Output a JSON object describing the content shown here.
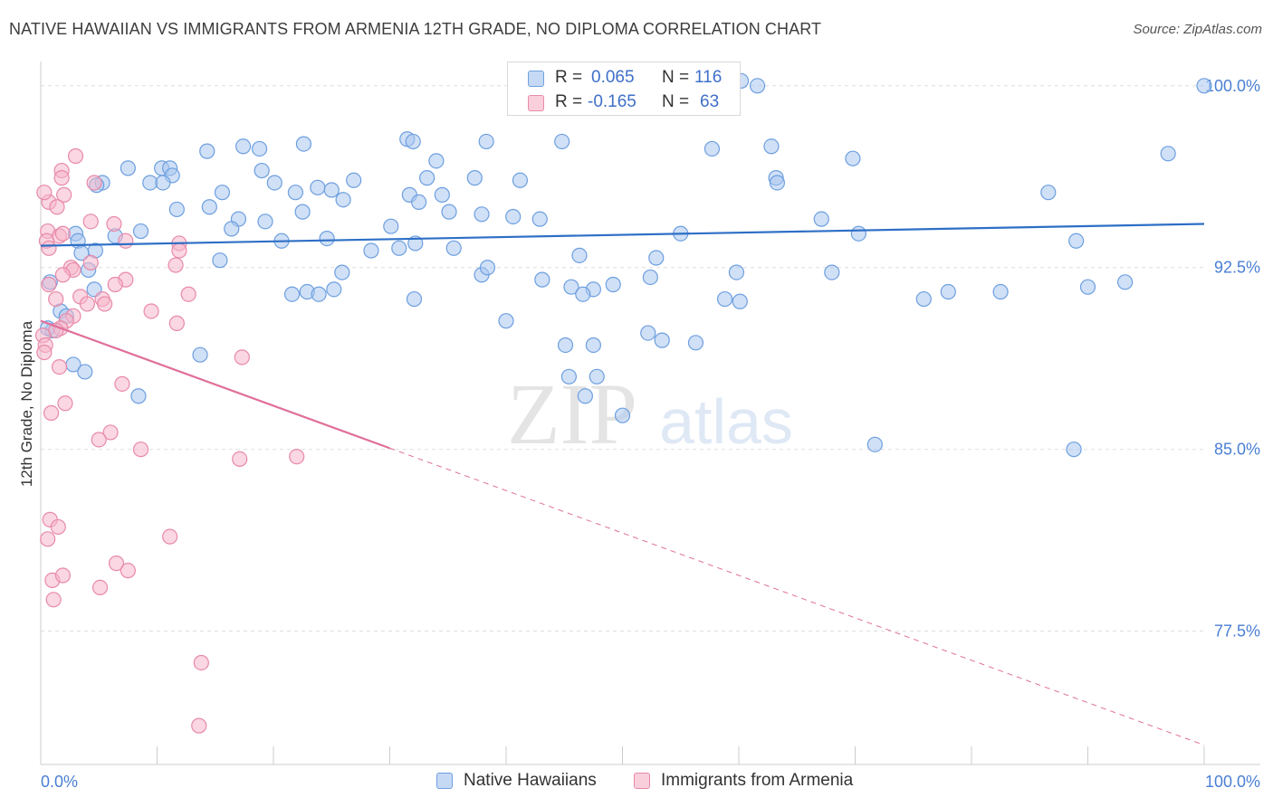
{
  "header": {
    "title": "NATIVE HAWAIIAN VS IMMIGRANTS FROM ARMENIA 12TH GRADE, NO DIPLOMA CORRELATION CHART",
    "source": "Source: ZipAtlas.com"
  },
  "watermark": {
    "zip": "ZIP",
    "atlas": "atlas"
  },
  "stats": {
    "r_label": "R =",
    "n_label": "N =",
    "rows": [
      {
        "r": "0.065",
        "n": "116"
      },
      {
        "r": "-0.165",
        "n": "63"
      }
    ]
  },
  "colors": {
    "blue_fill": "#a9c7ef",
    "blue_stroke": "#6d9fe0",
    "blue_line": "#2e6fc6",
    "pink_fill": "#f5b6ca",
    "pink_stroke": "#e889a9",
    "pink_line": "#e0709a",
    "tick_label": "#4a7fd4",
    "grid": "#dddddd"
  },
  "chart_data": {
    "type": "scatter",
    "title": "NATIVE HAWAIIAN VS IMMIGRANTS FROM ARMENIA 12TH GRADE, NO DIPLOMA CORRELATION CHART",
    "xlabel": "",
    "ylabel": "12th Grade, No Diploma",
    "xlim": [
      0,
      100
    ],
    "ylim": [
      72.0,
      101.0
    ],
    "x_tick_labels": [
      "0.0%",
      "100.0%"
    ],
    "y_ticks": [
      {
        "value": 100.0,
        "label": "100.0%"
      },
      {
        "value": 92.5,
        "label": "92.5%"
      },
      {
        "value": 85.0,
        "label": "85.0%"
      },
      {
        "value": 77.5,
        "label": "77.5%"
      }
    ],
    "grid": true,
    "legend_position": "bottom",
    "series": [
      {
        "name": "Native Hawaiians",
        "color": "#a9c7ef",
        "trend": {
          "x0": 0,
          "y0": 93.4,
          "x1": 100,
          "y1": 94.3,
          "dashed_from": null
        },
        "points": [
          [
            40.8,
            100.3
          ],
          [
            58.3,
            100.2
          ],
          [
            59.2,
            100.1
          ],
          [
            60.2,
            100.2
          ],
          [
            61.6,
            100.0
          ],
          [
            100.0,
            100.0
          ],
          [
            31.5,
            97.8
          ],
          [
            32.0,
            97.7
          ],
          [
            38.3,
            97.7
          ],
          [
            44.8,
            97.7
          ],
          [
            22.6,
            97.6
          ],
          [
            17.4,
            97.5
          ],
          [
            18.8,
            97.4
          ],
          [
            62.8,
            97.5
          ],
          [
            57.7,
            97.4
          ],
          [
            14.3,
            97.3
          ],
          [
            96.9,
            97.2
          ],
          [
            34.0,
            96.9
          ],
          [
            69.8,
            97.0
          ],
          [
            10.4,
            96.6
          ],
          [
            11.1,
            96.6
          ],
          [
            11.3,
            96.3
          ],
          [
            19.0,
            96.5
          ],
          [
            26.9,
            96.1
          ],
          [
            7.5,
            96.6
          ],
          [
            9.4,
            96.0
          ],
          [
            33.2,
            96.2
          ],
          [
            41.2,
            96.1
          ],
          [
            63.2,
            96.2
          ],
          [
            37.3,
            96.2
          ],
          [
            20.1,
            96.0
          ],
          [
            63.3,
            96.0
          ],
          [
            5.3,
            96.0
          ],
          [
            10.5,
            96.0
          ],
          [
            4.8,
            95.9
          ],
          [
            23.8,
            95.8
          ],
          [
            25.0,
            95.7
          ],
          [
            31.7,
            95.5
          ],
          [
            21.9,
            95.6
          ],
          [
            32.5,
            95.2
          ],
          [
            34.5,
            95.5
          ],
          [
            15.6,
            95.6
          ],
          [
            86.6,
            95.6
          ],
          [
            26.0,
            95.3
          ],
          [
            14.5,
            95.0
          ],
          [
            11.7,
            94.9
          ],
          [
            40.6,
            94.6
          ],
          [
            35.1,
            94.8
          ],
          [
            17.0,
            94.5
          ],
          [
            37.9,
            94.7
          ],
          [
            22.5,
            94.8
          ],
          [
            42.9,
            94.5
          ],
          [
            19.3,
            94.4
          ],
          [
            16.4,
            94.1
          ],
          [
            8.6,
            94.0
          ],
          [
            6.4,
            93.8
          ],
          [
            3.0,
            93.9
          ],
          [
            3.2,
            93.6
          ],
          [
            32.2,
            93.5
          ],
          [
            67.1,
            94.5
          ],
          [
            55.0,
            93.9
          ],
          [
            70.3,
            93.9
          ],
          [
            89.0,
            93.6
          ],
          [
            4.7,
            93.2
          ],
          [
            3.5,
            93.1
          ],
          [
            20.7,
            93.6
          ],
          [
            24.6,
            93.7
          ],
          [
            28.4,
            93.2
          ],
          [
            30.8,
            93.3
          ],
          [
            46.3,
            93.0
          ],
          [
            52.9,
            92.9
          ],
          [
            15.4,
            92.8
          ],
          [
            4.1,
            92.4
          ],
          [
            25.9,
            92.3
          ],
          [
            37.9,
            92.2
          ],
          [
            38.4,
            92.5
          ],
          [
            43.1,
            92.0
          ],
          [
            59.8,
            92.3
          ],
          [
            68.0,
            92.3
          ],
          [
            52.4,
            92.1
          ],
          [
            49.2,
            91.8
          ],
          [
            47.5,
            91.6
          ],
          [
            0.8,
            91.9
          ],
          [
            4.6,
            91.6
          ],
          [
            21.6,
            91.4
          ],
          [
            22.9,
            91.5
          ],
          [
            23.9,
            91.4
          ],
          [
            25.2,
            91.6
          ],
          [
            32.1,
            91.2
          ],
          [
            45.6,
            91.7
          ],
          [
            46.6,
            91.4
          ],
          [
            58.8,
            91.2
          ],
          [
            60.1,
            91.1
          ],
          [
            75.9,
            91.2
          ],
          [
            78.0,
            91.5
          ],
          [
            82.5,
            91.5
          ],
          [
            93.2,
            91.9
          ],
          [
            90.0,
            91.7
          ],
          [
            1.7,
            90.7
          ],
          [
            2.2,
            90.5
          ],
          [
            40.0,
            90.3
          ],
          [
            45.1,
            89.3
          ],
          [
            47.5,
            89.3
          ],
          [
            52.2,
            89.8
          ],
          [
            53.4,
            89.5
          ],
          [
            56.3,
            89.4
          ],
          [
            13.7,
            88.9
          ],
          [
            2.8,
            88.5
          ],
          [
            45.4,
            88.0
          ],
          [
            47.8,
            88.0
          ],
          [
            46.8,
            87.2
          ],
          [
            8.4,
            87.2
          ],
          [
            50.0,
            86.4
          ],
          [
            88.8,
            85.0
          ],
          [
            71.7,
            85.2
          ],
          [
            1.0,
            89.9
          ],
          [
            3.8,
            88.2
          ],
          [
            0.6,
            90.0
          ],
          [
            30.1,
            94.2
          ],
          [
            35.5,
            93.3
          ]
        ]
      },
      {
        "name": "Immigrants from Armenia",
        "color": "#f5b6ca",
        "trend": {
          "x0": 0,
          "y0": 90.3,
          "x1": 100,
          "y1": 72.8,
          "dashed_from": 30
        },
        "points": [
          [
            3.0,
            97.1
          ],
          [
            1.8,
            96.5
          ],
          [
            1.8,
            96.2
          ],
          [
            4.6,
            96.0
          ],
          [
            2.0,
            95.5
          ],
          [
            0.7,
            95.2
          ],
          [
            1.4,
            95.0
          ],
          [
            4.3,
            94.4
          ],
          [
            6.3,
            94.3
          ],
          [
            0.6,
            94.0
          ],
          [
            1.6,
            93.8
          ],
          [
            1.9,
            93.9
          ],
          [
            0.5,
            93.6
          ],
          [
            7.3,
            93.6
          ],
          [
            11.9,
            93.5
          ],
          [
            11.9,
            93.2
          ],
          [
            0.7,
            93.3
          ],
          [
            4.3,
            92.7
          ],
          [
            2.6,
            92.5
          ],
          [
            11.6,
            92.6
          ],
          [
            2.8,
            92.4
          ],
          [
            1.9,
            92.2
          ],
          [
            7.3,
            92.0
          ],
          [
            6.4,
            91.8
          ],
          [
            0.7,
            91.8
          ],
          [
            12.7,
            91.4
          ],
          [
            3.4,
            91.3
          ],
          [
            1.3,
            91.2
          ],
          [
            5.3,
            91.2
          ],
          [
            4.0,
            91.0
          ],
          [
            5.5,
            91.0
          ],
          [
            9.5,
            90.7
          ],
          [
            2.8,
            90.5
          ],
          [
            2.2,
            90.3
          ],
          [
            1.7,
            90.0
          ],
          [
            11.7,
            90.2
          ],
          [
            1.3,
            89.9
          ],
          [
            0.2,
            89.7
          ],
          [
            0.4,
            89.3
          ],
          [
            0.3,
            89.0
          ],
          [
            17.3,
            88.8
          ],
          [
            1.6,
            88.4
          ],
          [
            7.0,
            87.7
          ],
          [
            2.1,
            86.9
          ],
          [
            0.9,
            86.5
          ],
          [
            6.0,
            85.7
          ],
          [
            5.0,
            85.4
          ],
          [
            8.6,
            85.0
          ],
          [
            17.1,
            84.6
          ],
          [
            22.0,
            84.7
          ],
          [
            0.8,
            82.1
          ],
          [
            1.5,
            81.8
          ],
          [
            0.6,
            81.3
          ],
          [
            11.1,
            81.4
          ],
          [
            6.5,
            80.3
          ],
          [
            7.5,
            80.0
          ],
          [
            1.0,
            79.6
          ],
          [
            1.9,
            79.8
          ],
          [
            5.1,
            79.3
          ],
          [
            1.1,
            78.8
          ],
          [
            13.8,
            76.2
          ],
          [
            13.6,
            73.6
          ],
          [
            0.3,
            95.6
          ]
        ]
      }
    ]
  }
}
